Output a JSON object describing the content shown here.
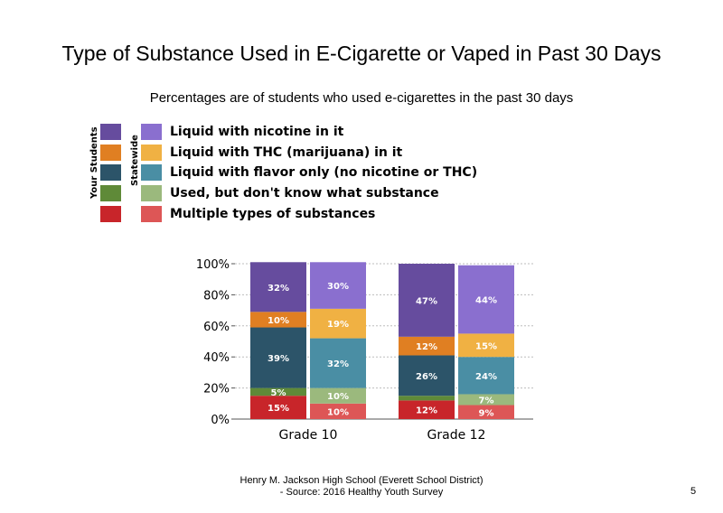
{
  "chart_data": {
    "type": "bar",
    "stacked": true,
    "title": "Type of Substance Used in E-Cigarette or Vaped in Past 30 Days",
    "subtitle": "Percentages are of students  who used e-cigarettes in the past 30 days",
    "legend_group_labels": [
      "Your Students",
      "Statewide"
    ],
    "categories": [
      "Grade 10",
      "Grade 12"
    ],
    "groups": [
      "Your Students",
      "Statewide"
    ],
    "y_ticks": [
      "0%",
      "20%",
      "40%",
      "60%",
      "80%",
      "100%"
    ],
    "ylim": [
      0,
      100
    ],
    "grid": true,
    "series": [
      {
        "name": "Multiple types of substances",
        "color_school": "#c8252a",
        "color_state": "#dd5656",
        "values": {
          "Grade 10": [
            15,
            10
          ],
          "Grade 12": [
            12,
            9
          ]
        },
        "labels": {
          "Grade 10": [
            "15%",
            "10%"
          ],
          "Grade 12": [
            "12%",
            "9%"
          ]
        }
      },
      {
        "name": "Used, but don't know what substance",
        "color_school": "#5f8a38",
        "color_state": "#9bb97d",
        "values": {
          "Grade 10": [
            5,
            10
          ],
          "Grade 12": [
            3,
            7
          ]
        },
        "labels": {
          "Grade 10": [
            "5%",
            "10%"
          ],
          "Grade 12": [
            "",
            "7%"
          ]
        }
      },
      {
        "name": "Liquid with flavor only (no nicotine or THC)",
        "color_school": "#2c5469",
        "color_state": "#4a8ea4",
        "values": {
          "Grade 10": [
            39,
            32
          ],
          "Grade 12": [
            26,
            24
          ]
        },
        "labels": {
          "Grade 10": [
            "39%",
            "32%"
          ],
          "Grade 12": [
            "26%",
            "24%"
          ]
        }
      },
      {
        "name": "Liquid with THC (marijuana) in it",
        "color_school": "#e07f22",
        "color_state": "#f0b143",
        "values": {
          "Grade 10": [
            10,
            19
          ],
          "Grade 12": [
            12,
            15
          ]
        },
        "labels": {
          "Grade 10": [
            "10%",
            "19%"
          ],
          "Grade 12": [
            "12%",
            "15%"
          ]
        }
      },
      {
        "name": "Liquid with nicotine in it",
        "color_school": "#664c9e",
        "color_state": "#8a6fcf",
        "values": {
          "Grade 10": [
            32,
            30
          ],
          "Grade 12": [
            47,
            44
          ]
        },
        "labels": {
          "Grade 10": [
            "32%",
            "30%"
          ],
          "Grade 12": [
            "47%",
            "44%"
          ]
        }
      }
    ]
  },
  "legend": {
    "items": [
      {
        "label": "Liquid with nicotine in it",
        "color_school": "#664c9e",
        "color_state": "#8a6fcf"
      },
      {
        "label": "Liquid with THC (marijuana) in it",
        "color_school": "#e07f22",
        "color_state": "#f0b143"
      },
      {
        "label": "Liquid with flavor only (no nicotine or THC)",
        "color_school": "#2c5469",
        "color_state": "#4a8ea4"
      },
      {
        "label": "Used, but don't know what substance",
        "color_school": "#5f8a38",
        "color_state": "#9bb97d"
      },
      {
        "label": "Multiple types of substances",
        "color_school": "#c8252a",
        "color_state": "#dd5656"
      }
    ]
  },
  "footer": {
    "line1": "Henry M.  Jackson High  School (Everett School District)",
    "line2": "- Source: 2016 Healthy  Youth Survey"
  },
  "page_number": "5"
}
